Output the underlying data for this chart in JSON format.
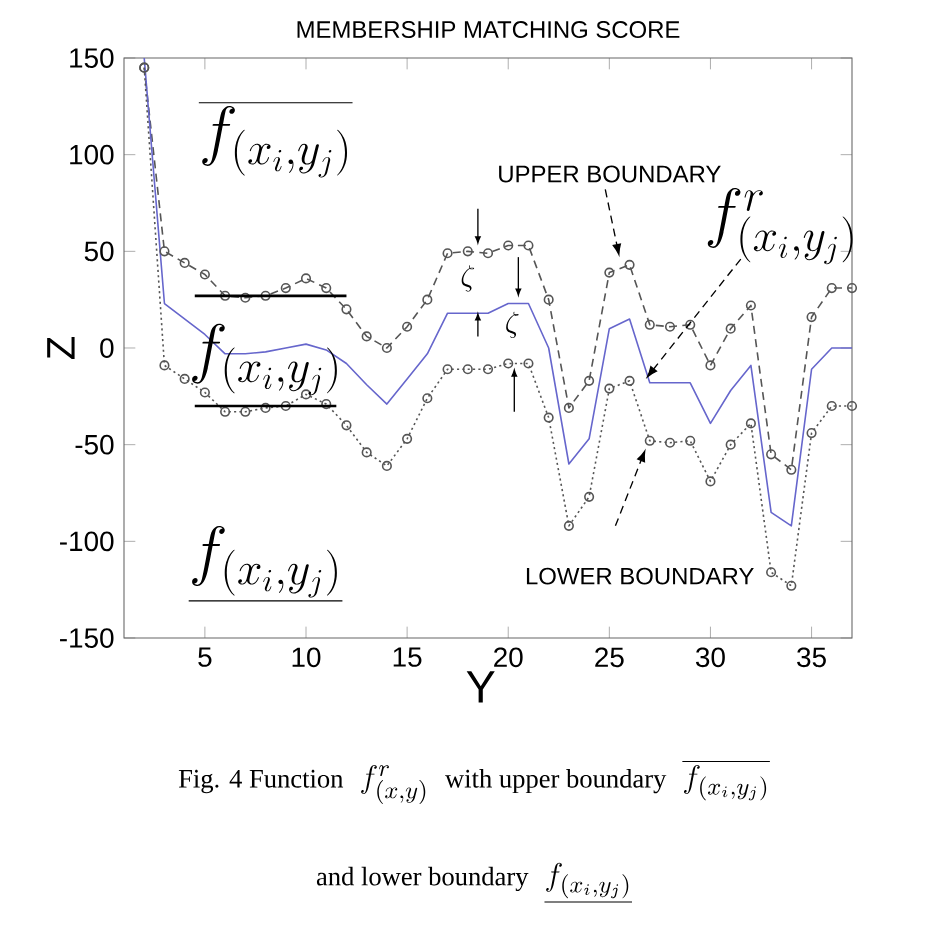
{
  "chart_data": {
    "type": "line",
    "title": "MEMBERSHIP MATCHING SCORE",
    "xlabel": "Y",
    "ylabel": "Z",
    "x": [
      2,
      3,
      4,
      5,
      6,
      7,
      8,
      9,
      10,
      11,
      12,
      13,
      14,
      15,
      16,
      17,
      18,
      19,
      20,
      21,
      22,
      23,
      24,
      25,
      26,
      27,
      28,
      29,
      30,
      31,
      32,
      33,
      34,
      35,
      36,
      37
    ],
    "series": [
      {
        "color": "#555555",
        "line_style": "dashed",
        "marker": "circle",
        "values": [
          145,
          50,
          44,
          38,
          27,
          26,
          27,
          31,
          36,
          31,
          20,
          6,
          0,
          11,
          25,
          49,
          50,
          49,
          53,
          53,
          25,
          -31,
          -17,
          39,
          43,
          12,
          11,
          12,
          -9,
          10,
          22,
          -55,
          -63,
          16,
          31,
          31
        ]
      },
      {
        "color": "#6666cc",
        "line_style": "solid",
        "marker": "none",
        "values": [
          150,
          23,
          15,
          7,
          -3,
          -3,
          -2,
          0,
          2,
          -1,
          -8,
          -19,
          -29,
          -16,
          -3,
          18,
          18,
          18,
          23,
          23,
          0,
          -60,
          -47,
          10,
          15,
          -18,
          -18,
          -18,
          -39,
          -22,
          -9,
          -85,
          -92,
          -11,
          0,
          0
        ]
      },
      {
        "color": "#555555",
        "line_style": "dotted",
        "marker": "circle",
        "values": [
          145,
          -9,
          -16,
          -23,
          -33,
          -33,
          -31,
          -30,
          -24,
          -29,
          -40,
          -54,
          -61,
          -47,
          -26,
          -11,
          -11,
          -11,
          -8,
          -8,
          -36,
          -92,
          -77,
          -21,
          -17,
          -48,
          -49,
          -48,
          -69,
          -50,
          -39,
          -116,
          -123,
          -44,
          -30,
          -30
        ]
      }
    ],
    "xlim": [
      1,
      37
    ],
    "ylim": [
      -150,
      150
    ],
    "xticks": [
      5,
      10,
      15,
      20,
      25,
      30,
      35
    ],
    "yticks": [
      -150,
      -100,
      -50,
      0,
      50,
      100,
      150
    ],
    "annotations": [
      "UPPER BOUNDARY",
      "LOWER BOUNDARY",
      "\\overline{f_{(x_i,y_j)}}",
      "f_{(x_i,y_j)}",
      "\\underline{f_{(x_i,y_j)}}",
      {
        "text": "f^{r}_{(x_i,y_j)}",
        "x": 27,
        "y": -18
      },
      "\\zeta",
      "\\zeta",
      "Fig. 4  Function",
      "f^{r}_{(x,y)}",
      "with upper boundary",
      "\\overline{f_{(x_i,y_j)}}",
      "and lower boundary",
      "\\underline{f_{(x_i,y_j)}}"
    ]
  }
}
